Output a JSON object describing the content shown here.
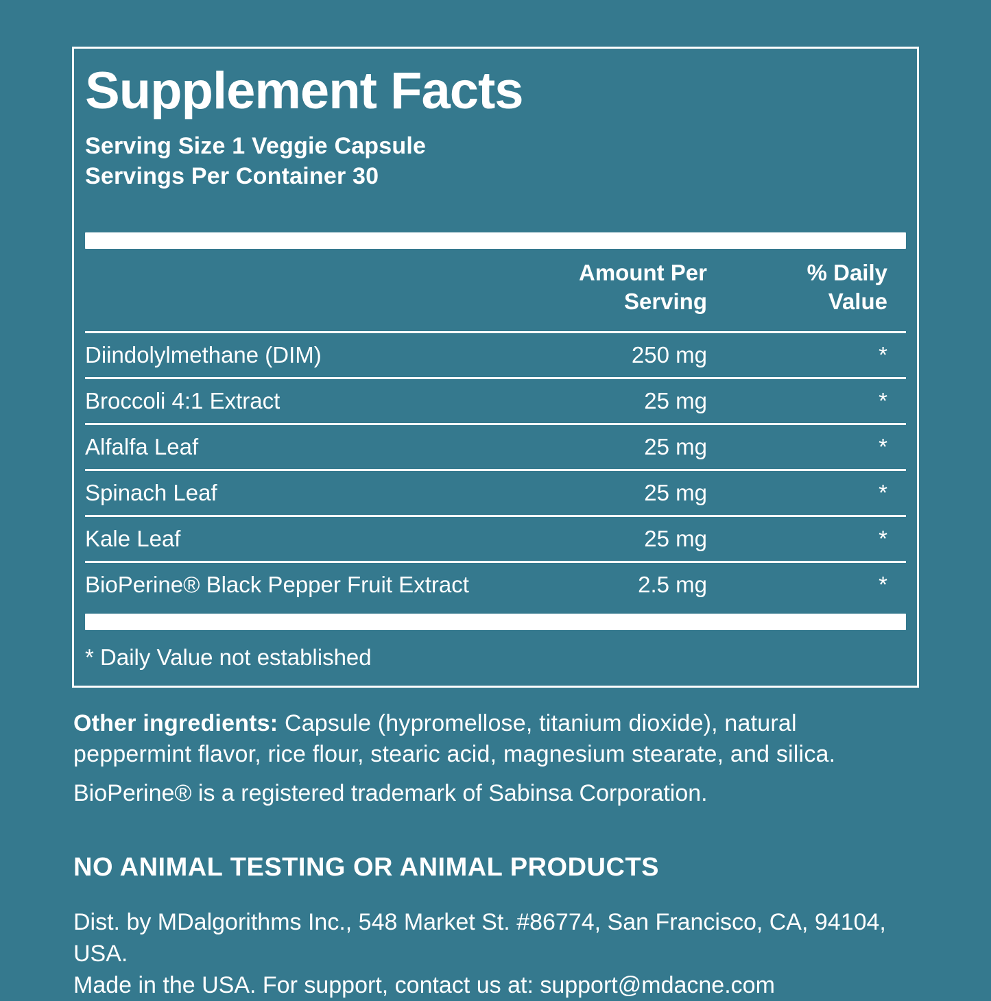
{
  "colors": {
    "background": "#35798E",
    "text": "#FFFFFF"
  },
  "panel": {
    "title": "Supplement Facts",
    "serving_size": "Serving Size 1 Veggie Capsule",
    "servings_per_container": "Servings Per Container 30",
    "columns": {
      "amount_line1": "Amount Per",
      "amount_line2": "Serving",
      "dv_line1": "% Daily",
      "dv_line2": "Value"
    },
    "rows": [
      {
        "name": "Diindolylmethane (DIM)",
        "amount": "250 mg",
        "dv": "*"
      },
      {
        "name": "Broccoli 4:1 Extract",
        "amount": "25 mg",
        "dv": "*"
      },
      {
        "name": "Alfalfa Leaf",
        "amount": "25 mg",
        "dv": "*"
      },
      {
        "name": "Spinach Leaf",
        "amount": "25 mg",
        "dv": "*"
      },
      {
        "name": "Kale Leaf",
        "amount": "25 mg",
        "dv": "*"
      },
      {
        "name": "BioPerine® Black Pepper Fruit Extract",
        "amount": "2.5 mg",
        "dv": "*"
      }
    ],
    "footnote": "* Daily Value not established"
  },
  "other_ingredients": {
    "label": "Other ingredients:",
    "text": " Capsule (hypromellose, titanium dioxide), natural peppermint flavor, rice flour, stearic acid, magnesium stearate, and silica.",
    "trademark": "BioPerine® is a registered trademark of Sabinsa Corporation."
  },
  "claim": "NO ANIMAL TESTING OR ANIMAL PRODUCTS",
  "distributor": {
    "line1": "Dist. by MDalgorithms Inc., 548 Market St. #86774, San Francisco, CA, 94104, USA.",
    "line2": "Made in the USA. For support, contact us at: support@mdacne.com"
  }
}
